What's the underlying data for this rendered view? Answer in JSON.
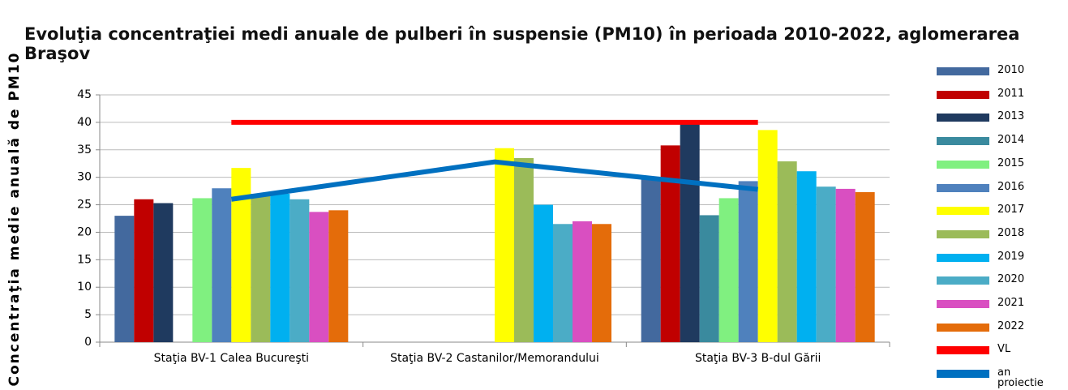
{
  "chart_data": {
    "type": "bar",
    "title": "Evoluţia concentraţiei medi anuale de pulberi în suspensie (PM10) în perioada 2010-2022, aglomerarea Braşov",
    "ylabel": "Concentraţia medie anuală de PM10",
    "categories": [
      "Staţia BV-1 Calea Bucureşti",
      "Staţia BV-2 Castanilor/Memorandului",
      "Staţia BV-3 B-dul Gării"
    ],
    "ylim": [
      0,
      45
    ],
    "yticks": [
      0,
      5,
      10,
      15,
      20,
      25,
      30,
      35,
      40,
      45
    ],
    "grid": true,
    "legend": "right",
    "series": [
      {
        "name": "2010",
        "color": "#43699e",
        "values": [
          23,
          null,
          30
        ]
      },
      {
        "name": "2011",
        "color": "#c00000",
        "values": [
          26,
          null,
          35.8
        ]
      },
      {
        "name": "2013",
        "color": "#1f3a5f",
        "values": [
          25.3,
          null,
          40
        ]
      },
      {
        "name": "2014",
        "color": "#3a8a9e",
        "values": [
          null,
          null,
          23.1
        ]
      },
      {
        "name": "2015",
        "color": "#80f080",
        "values": [
          26.2,
          null,
          26.2
        ]
      },
      {
        "name": "2016",
        "color": "#4f81bd",
        "values": [
          28,
          null,
          29.3
        ]
      },
      {
        "name": "2017",
        "color": "#ffff00",
        "values": [
          31.7,
          35.3,
          38.6
        ]
      },
      {
        "name": "2018",
        "color": "#9bbb59",
        "values": [
          27,
          33.5,
          32.9
        ]
      },
      {
        "name": "2019",
        "color": "#00b0f0",
        "values": [
          27,
          25,
          31.1
        ]
      },
      {
        "name": "2020",
        "color": "#4bacc6",
        "values": [
          26,
          21.5,
          28.3
        ]
      },
      {
        "name": "2021",
        "color": "#d94fc1",
        "values": [
          23.7,
          22,
          27.9
        ]
      },
      {
        "name": "2022",
        "color": "#e46c0a",
        "values": [
          24,
          21.5,
          27.3
        ]
      },
      {
        "name": "VL",
        "color": "#ff0000",
        "type": "line",
        "values": [
          40,
          40,
          40
        ]
      },
      {
        "name": "an proiectie",
        "color": "#0070c0",
        "type": "line",
        "values": [
          26,
          32.8,
          27.8
        ]
      }
    ]
  }
}
